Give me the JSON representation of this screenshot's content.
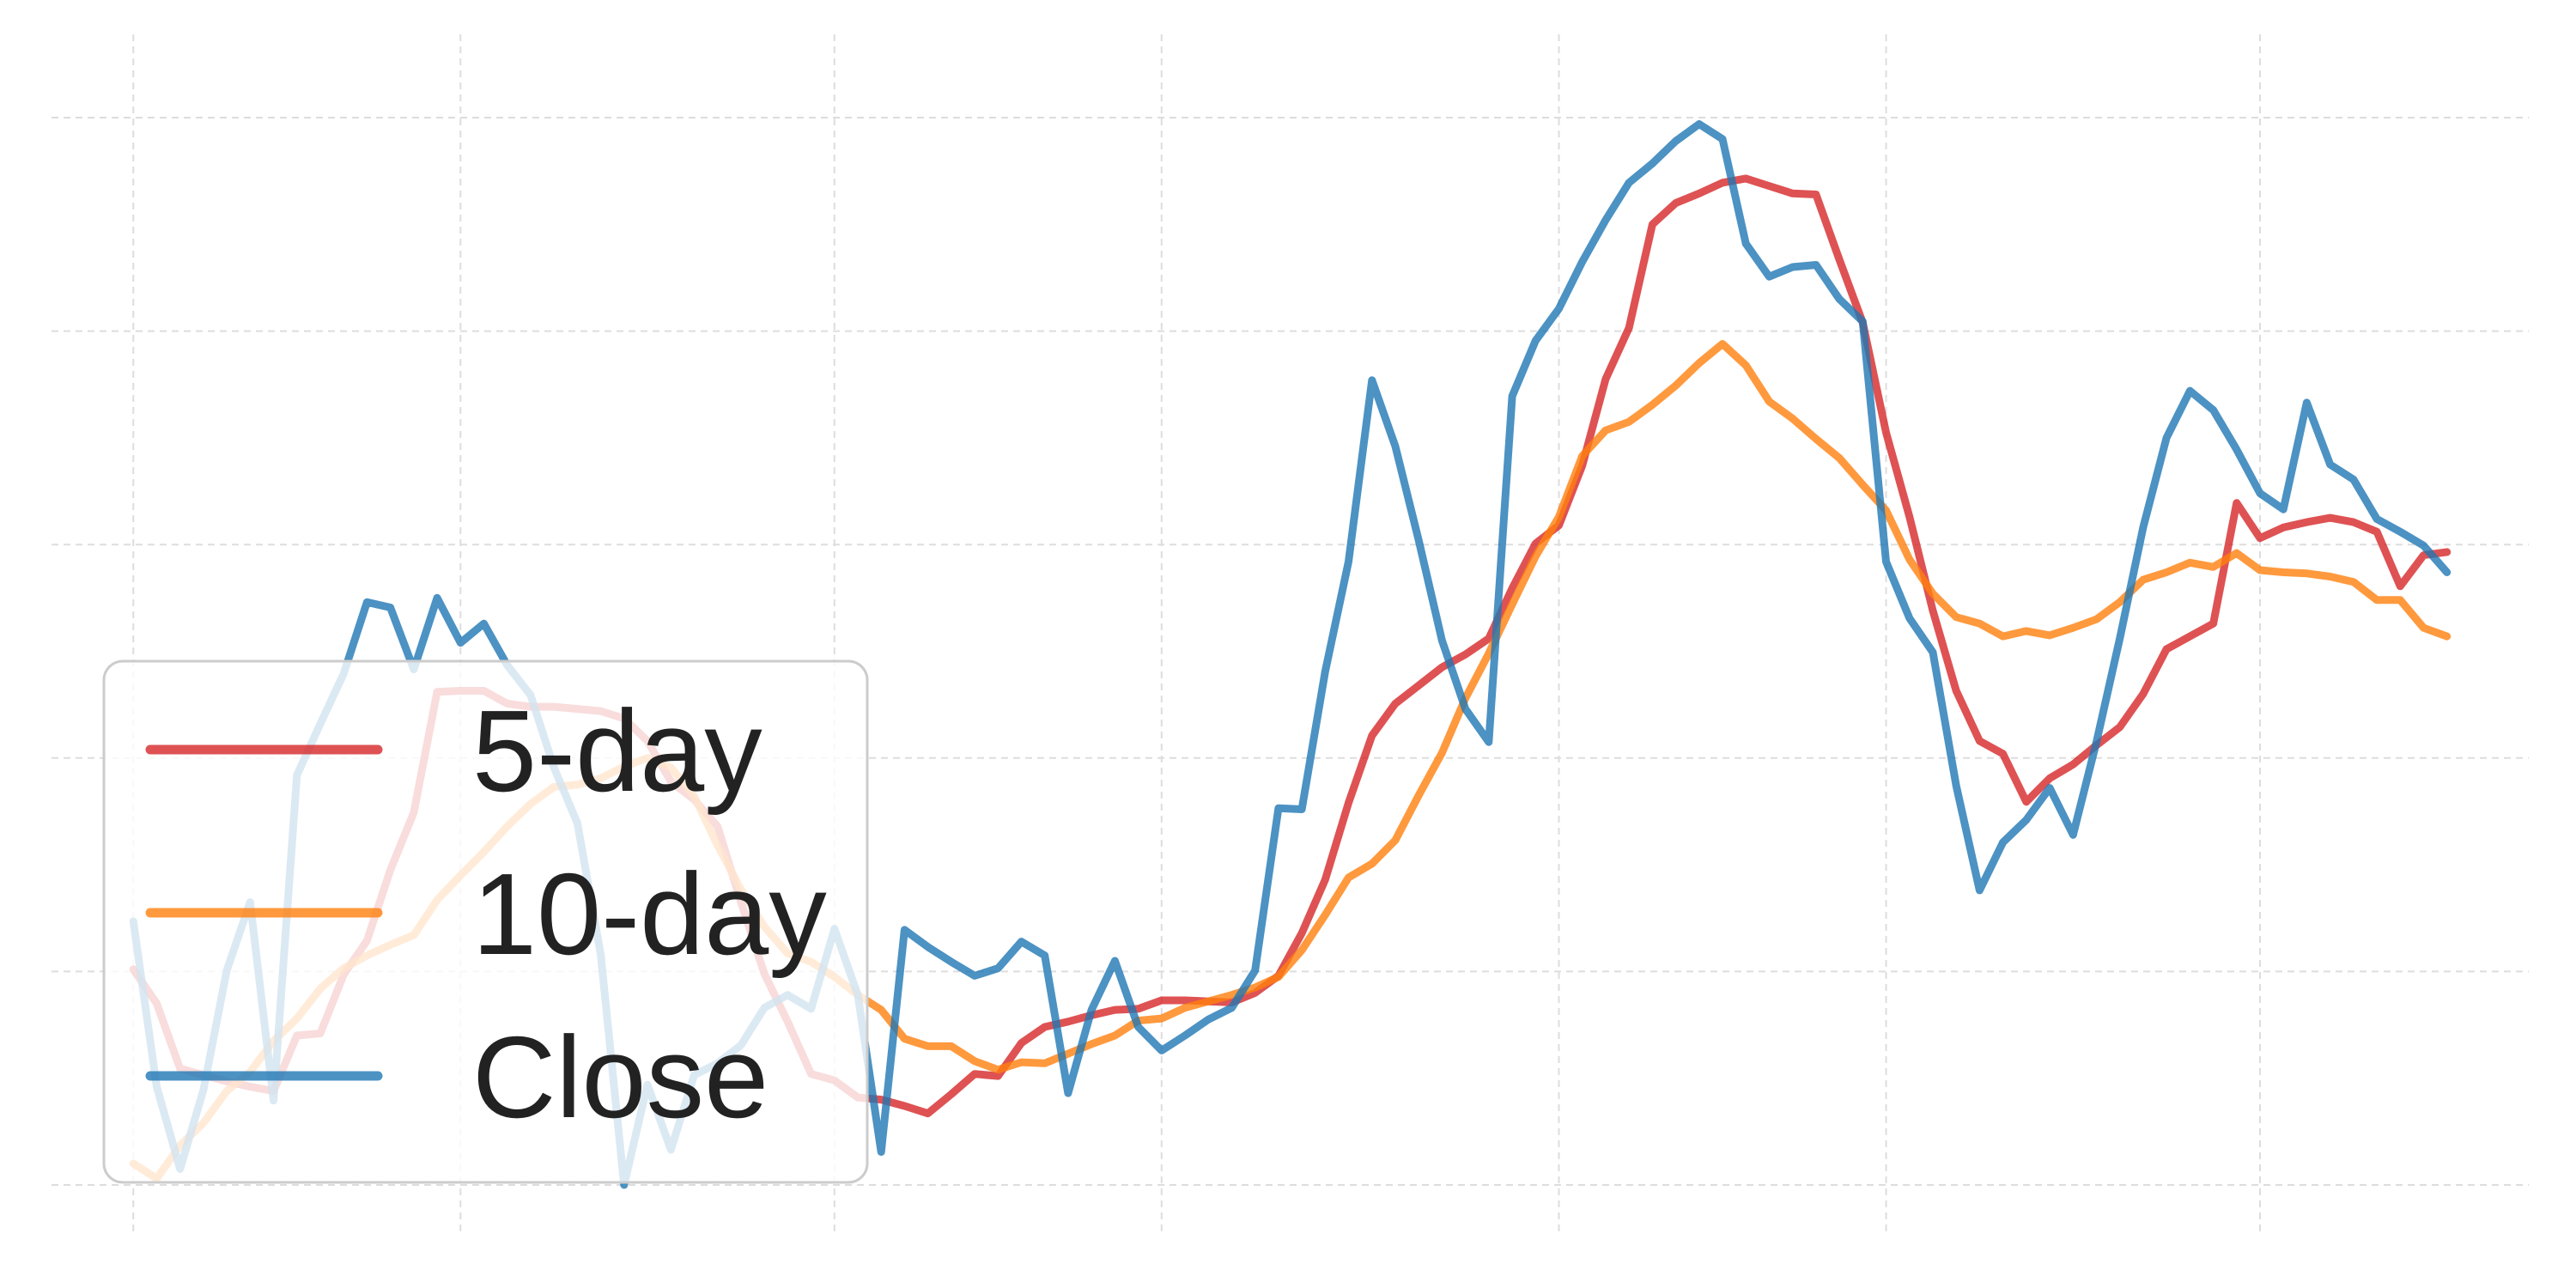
{
  "chart_data": {
    "type": "line",
    "title": "",
    "xlabel": "",
    "ylabel": "",
    "x": [
      0,
      1,
      2,
      3,
      4,
      5,
      6,
      7,
      8,
      9,
      10,
      11,
      12,
      13,
      14,
      15,
      16,
      17,
      18,
      19,
      20,
      21,
      22,
      23,
      24,
      25,
      26,
      27,
      28,
      29,
      30,
      31,
      32,
      33,
      34,
      35,
      36,
      37,
      38,
      39,
      40,
      41,
      42,
      43,
      44,
      45,
      46,
      47,
      48,
      49,
      50,
      51,
      52,
      53,
      54,
      55,
      56,
      57,
      58,
      59,
      60,
      61,
      62,
      63,
      64,
      65,
      66,
      67,
      68,
      69,
      70,
      71,
      72,
      73,
      74,
      75,
      76,
      77,
      78,
      79,
      80,
      81,
      82,
      83,
      84,
      85,
      86,
      87,
      88,
      89,
      90,
      91,
      92,
      93,
      94,
      95,
      96,
      97,
      98,
      99
    ],
    "xlim": [
      -3.5,
      102.5
    ],
    "ylim": [
      0,
      100
    ],
    "grid": true,
    "tick_labels_visible": false,
    "legend_position": "lower-left",
    "series": [
      {
        "name": "5-day",
        "color": "#d62728",
        "values": [
          20.2,
          17.0,
          10.9,
          10.3,
          9.7,
          9.2,
          8.8,
          14.0,
          14.2,
          19.7,
          22.9,
          29.5,
          34.9,
          46.2,
          46.3,
          46.3,
          45.1,
          44.8,
          44.8,
          44.6,
          44.4,
          43.7,
          41.6,
          37.8,
          36.1,
          33.6,
          26.5,
          19.8,
          15.3,
          10.4,
          9.8,
          8.2,
          8.0,
          7.4,
          6.7,
          8.5,
          10.4,
          10.2,
          13.3,
          14.8,
          15.3,
          15.9,
          16.4,
          16.5,
          17.3,
          17.3,
          17.2,
          17.1,
          18.0,
          19.6,
          23.6,
          28.6,
          35.8,
          42.1,
          45.1,
          46.8,
          48.5,
          49.7,
          51.2,
          55.9,
          60.1,
          61.8,
          67.4,
          75.5,
          80.3,
          90.0,
          92.0,
          92.9,
          93.9,
          94.3,
          93.6,
          92.9,
          92.8,
          86.7,
          80.8,
          70.5,
          62.6,
          53.8,
          46.3,
          41.6,
          40.4,
          35.9,
          38.1,
          39.4,
          41.2,
          42.9,
          46.0,
          50.2,
          51.4,
          52.6,
          63.9,
          60.6,
          61.6,
          62.1,
          62.5,
          62.1,
          61.2,
          56.1,
          59.0,
          59.3
        ]
      },
      {
        "name": "10-day",
        "color": "#ff7f0e",
        "values": [
          2.0,
          0.6,
          3.7,
          5.8,
          8.8,
          10.6,
          13.5,
          15.6,
          18.4,
          20.3,
          21.5,
          22.5,
          23.4,
          26.7,
          29.0,
          31.2,
          33.6,
          35.7,
          37.3,
          37.5,
          38.1,
          39.2,
          40.0,
          39.1,
          36.4,
          31.8,
          27.7,
          24.2,
          21.7,
          20.9,
          19.5,
          17.8,
          16.4,
          13.7,
          13.0,
          13.0,
          11.6,
          10.8,
          11.5,
          11.4,
          12.3,
          13.2,
          14.0,
          15.4,
          15.6,
          16.6,
          17.2,
          17.8,
          18.5,
          19.5,
          22.0,
          25.3,
          28.8,
          30.1,
          32.3,
          36.5,
          40.5,
          45.6,
          49.8,
          54.4,
          58.9,
          62.6,
          68.3,
          70.7,
          71.5,
          73.1,
          74.9,
          77.0,
          78.8,
          76.8,
          73.4,
          71.8,
          69.9,
          68.1,
          65.6,
          63.2,
          58.6,
          55.4,
          53.2,
          52.6,
          51.4,
          51.9,
          51.5,
          52.2,
          53.0,
          54.6,
          56.7,
          57.4,
          58.3,
          57.9,
          59.2,
          57.6,
          57.4,
          57.3,
          57.0,
          56.5,
          54.8,
          54.8,
          52.2,
          51.4
        ]
      },
      {
        "name": "Close",
        "color": "#1f77b4",
        "values": [
          24.7,
          9.2,
          1.5,
          8.9,
          20.1,
          26.5,
          7.9,
          38.4,
          43.2,
          47.9,
          54.6,
          54.1,
          48.3,
          55.0,
          50.8,
          52.6,
          48.7,
          45.9,
          39.1,
          33.9,
          21.6,
          0.0,
          9.4,
          3.3,
          10.3,
          11.4,
          13.1,
          16.6,
          17.8,
          16.5,
          24.0,
          17.8,
          3.1,
          23.9,
          22.3,
          20.9,
          19.6,
          20.3,
          22.8,
          21.5,
          8.6,
          16.4,
          21.0,
          14.8,
          12.6,
          14.0,
          15.5,
          16.6,
          20.1,
          35.3,
          35.2,
          48.1,
          58.4,
          75.4,
          69.2,
          60.4,
          51.0,
          44.6,
          41.5,
          73.9,
          79.1,
          82.1,
          86.5,
          90.4,
          93.9,
          95.7,
          97.8,
          99.4,
          98.0,
          88.2,
          85.1,
          86.0,
          86.2,
          83.0,
          80.9,
          58.4,
          53.1,
          49.9,
          37.4,
          27.6,
          32.1,
          34.2,
          37.2,
          32.8,
          41.5,
          51.2,
          61.6,
          70.0,
          74.4,
          72.6,
          68.9,
          64.8,
          63.3,
          73.3,
          67.5,
          66.1,
          62.4,
          61.2,
          59.9,
          57.4
        ]
      }
    ]
  },
  "legend": {
    "items": [
      {
        "label": "5-day",
        "color": "#d62728"
      },
      {
        "label": "10-day",
        "color": "#ff7f0e"
      },
      {
        "label": "Close",
        "color": "#1f77b4"
      }
    ]
  }
}
